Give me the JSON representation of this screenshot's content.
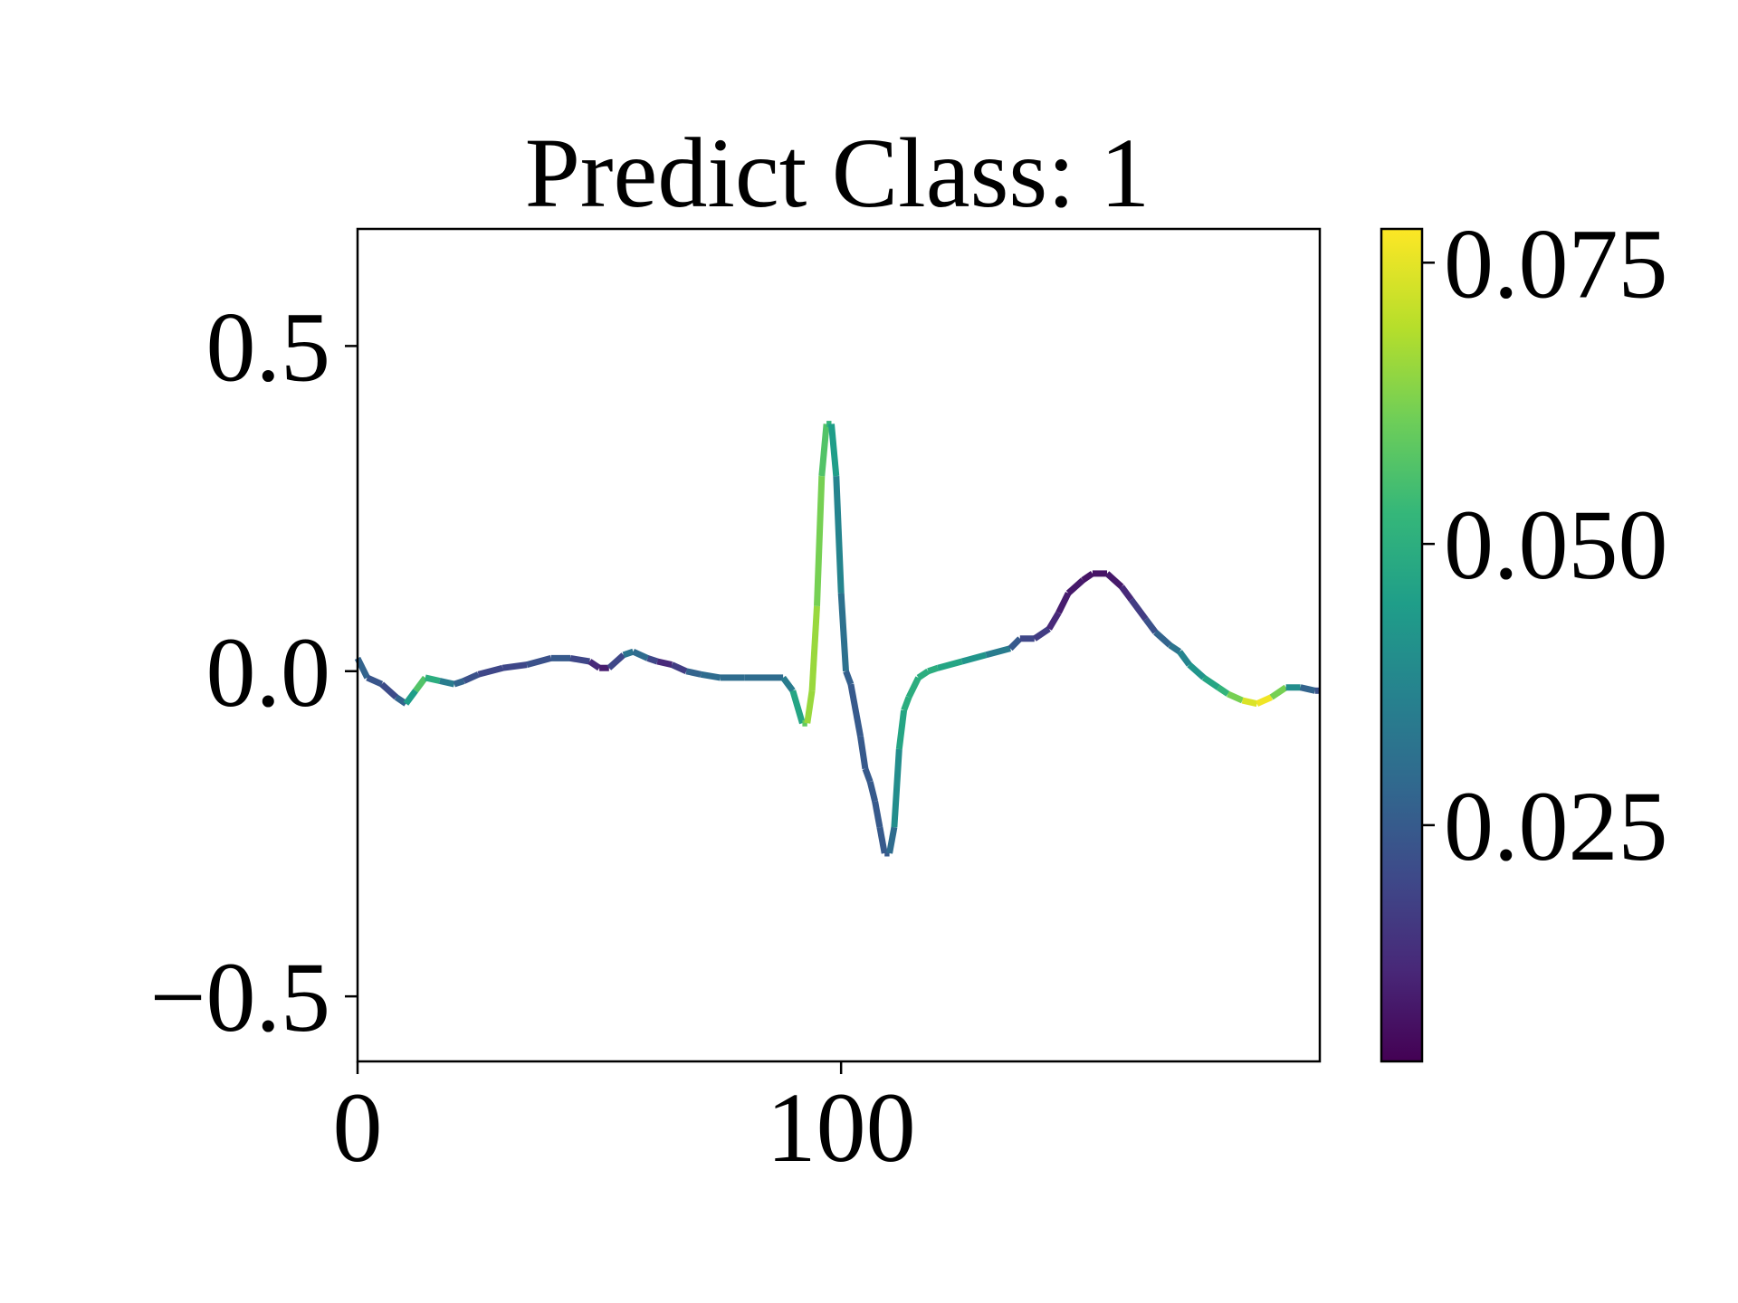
{
  "chart_data": {
    "type": "line",
    "title": "Predict Class: 1",
    "xlabel": "",
    "ylabel": "",
    "xlim": [
      0,
      199
    ],
    "ylim": [
      -0.6,
      0.68
    ],
    "xticks": [
      0,
      100
    ],
    "xtick_labels": [
      "0",
      "100"
    ],
    "yticks": [
      -0.5,
      0.0,
      0.5
    ],
    "ytick_labels": [
      "−0.5",
      "0.0",
      "0.5"
    ],
    "grid": false,
    "legend": "none",
    "colormap": "viridis",
    "colorbar": {
      "vmin": 0.004,
      "vmax": 0.078,
      "ticks": [
        0.025,
        0.05,
        0.075
      ],
      "tick_labels": [
        "0.025",
        "0.050",
        "0.075"
      ]
    },
    "x": [
      0,
      2,
      5,
      8,
      10,
      12,
      14,
      17,
      20,
      22,
      25,
      30,
      35,
      40,
      44,
      48,
      50,
      52,
      55,
      57,
      60,
      62,
      65,
      68,
      71,
      75,
      80,
      85,
      88,
      90,
      92,
      93,
      94,
      95,
      96,
      97,
      98,
      99,
      100,
      101,
      102,
      104,
      105,
      106,
      107,
      108,
      109,
      110,
      111,
      112,
      113,
      114,
      116,
      118,
      120,
      125,
      130,
      135,
      137,
      140,
      143,
      145,
      147,
      150,
      152,
      155,
      158,
      160,
      163,
      165,
      168,
      170,
      172,
      175,
      178,
      180,
      183,
      186,
      189,
      192,
      195,
      198,
      199
    ],
    "values": [
      0.02,
      -0.01,
      -0.02,
      -0.04,
      -0.05,
      -0.03,
      -0.01,
      -0.015,
      -0.02,
      -0.015,
      -0.005,
      0.005,
      0.01,
      0.02,
      0.02,
      0.015,
      0.005,
      0.005,
      0.025,
      0.03,
      0.02,
      0.015,
      0.01,
      0.0,
      -0.005,
      -0.01,
      -0.01,
      -0.01,
      -0.01,
      -0.03,
      -0.08,
      -0.08,
      -0.03,
      0.1,
      0.3,
      0.38,
      0.38,
      0.3,
      0.12,
      0.0,
      -0.02,
      -0.1,
      -0.15,
      -0.17,
      -0.2,
      -0.24,
      -0.28,
      -0.28,
      -0.24,
      -0.12,
      -0.06,
      -0.04,
      -0.01,
      0.0,
      0.005,
      0.015,
      0.025,
      0.035,
      0.05,
      0.05,
      0.065,
      0.09,
      0.12,
      0.14,
      0.15,
      0.15,
      0.13,
      0.11,
      0.08,
      0.06,
      0.04,
      0.03,
      0.01,
      -0.01,
      -0.025,
      -0.035,
      -0.045,
      -0.05,
      -0.04,
      -0.025,
      -0.025,
      -0.03,
      -0.03
    ],
    "weights": [
      0.03,
      0.025,
      0.022,
      0.02,
      0.035,
      0.055,
      0.06,
      0.04,
      0.03,
      0.025,
      0.02,
      0.02,
      0.02,
      0.025,
      0.025,
      0.015,
      0.01,
      0.01,
      0.03,
      0.035,
      0.025,
      0.015,
      0.01,
      0.025,
      0.03,
      0.03,
      0.03,
      0.03,
      0.03,
      0.04,
      0.055,
      0.065,
      0.068,
      0.065,
      0.06,
      0.055,
      0.05,
      0.04,
      0.035,
      0.028,
      0.025,
      0.025,
      0.025,
      0.025,
      0.025,
      0.025,
      0.025,
      0.025,
      0.035,
      0.045,
      0.05,
      0.05,
      0.05,
      0.05,
      0.05,
      0.045,
      0.04,
      0.03,
      0.02,
      0.02,
      0.015,
      0.01,
      0.01,
      0.008,
      0.008,
      0.008,
      0.01,
      0.015,
      0.02,
      0.025,
      0.03,
      0.035,
      0.04,
      0.045,
      0.05,
      0.055,
      0.07,
      0.078,
      0.075,
      0.05,
      0.03,
      0.025,
      0.02
    ]
  }
}
